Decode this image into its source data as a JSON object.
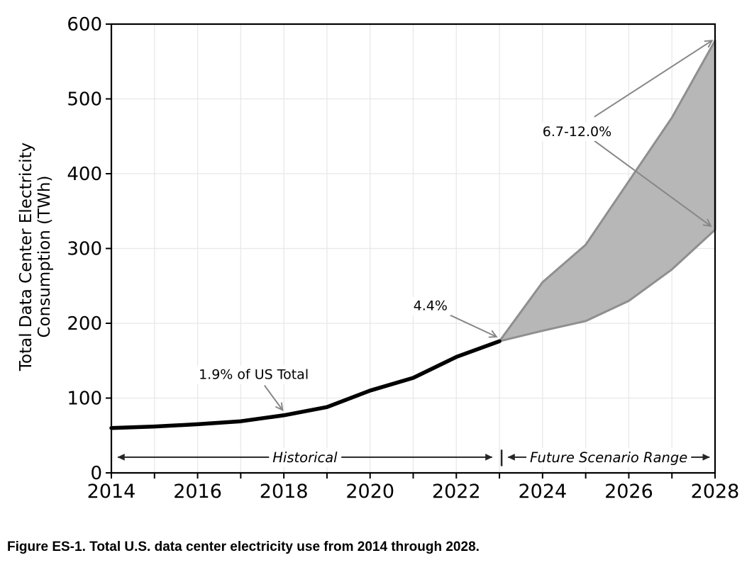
{
  "caption": "Figure ES-1. Total U.S. data center electricity use from 2014 through 2028.",
  "colors": {
    "background": "#ffffff",
    "historical_line": "#000000",
    "band_fill": "#b7b7b7",
    "band_edge": "#8f8f8f",
    "annotation_arrow": "#878787",
    "range_arrow": "#262626",
    "gridline": "#e8e8e8",
    "axis": "#000000",
    "text": "#000000"
  },
  "chart_data": {
    "type": "area",
    "title": "",
    "xlabel": "",
    "ylabel_lines": [
      "Total Data Center Electricity",
      "Consumption (TWh)"
    ],
    "xlim": [
      2014,
      2028
    ],
    "ylim": [
      0,
      600
    ],
    "grid": true,
    "x_minor_tick_step": 1,
    "x_tick_labels": [
      "2014",
      "2016",
      "2018",
      "2020",
      "2022",
      "2024",
      "2026",
      "2028"
    ],
    "x_tick_values": [
      2014,
      2016,
      2018,
      2020,
      2022,
      2024,
      2026,
      2028
    ],
    "y_tick_labels": [
      "0",
      "100",
      "200",
      "300",
      "400",
      "500",
      "600"
    ],
    "y_tick_values": [
      0,
      100,
      200,
      300,
      400,
      500,
      600
    ],
    "series": [
      {
        "name": "Historical",
        "type": "line",
        "x": [
          2014,
          2015,
          2016,
          2017,
          2018,
          2019,
          2020,
          2021,
          2022,
          2023
        ],
        "y": [
          60,
          62,
          65,
          69,
          77,
          88,
          110,
          127,
          155,
          176
        ]
      },
      {
        "name": "Future Scenario Range",
        "type": "band",
        "x": [
          2023,
          2024,
          2025,
          2026,
          2027,
          2028
        ],
        "upper": [
          176,
          255,
          305,
          390,
          475,
          578
        ],
        "lower": [
          176,
          190,
          203,
          230,
          272,
          325
        ]
      }
    ],
    "annotations": [
      {
        "id": "share-2018",
        "text": "1.9% of US Total",
        "tx": 2017.3,
        "ty": 132,
        "arrows": [
          {
            "x1": 2017.55,
            "y1": 117,
            "x2": 2017.97,
            "y2": 84
          }
        ]
      },
      {
        "id": "share-2023",
        "text": "4.4%",
        "tx": 2021.4,
        "ty": 224,
        "arrows": [
          {
            "x1": 2021.85,
            "y1": 211,
            "x2": 2022.93,
            "y2": 182
          }
        ]
      },
      {
        "id": "share-2028",
        "text": "6.7-12.0%",
        "tx": 2024.8,
        "ty": 457,
        "arrows": [
          {
            "x1": 2025.2,
            "y1": 476,
            "x2": 2027.93,
            "y2": 578
          },
          {
            "x1": 2025.2,
            "y1": 444,
            "x2": 2027.9,
            "y2": 330
          }
        ]
      }
    ],
    "range_markers": [
      {
        "id": "historical-range",
        "label": "Historical",
        "x1": 2014.1,
        "x2": 2022.88,
        "y": 21
      },
      {
        "id": "future-range",
        "label": "Future Scenario Range",
        "x1": 2023.15,
        "x2": 2027.92,
        "y": 21
      }
    ],
    "range_divider": {
      "x": 2023.05,
      "y1": 9,
      "y2": 31
    }
  }
}
